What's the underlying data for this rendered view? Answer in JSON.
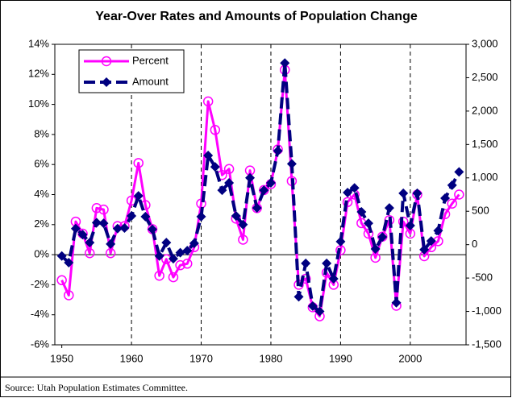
{
  "chart_data": {
    "type": "line",
    "title": "Year-Over Rates and Amounts of Population Change",
    "source": "Source: Utah Population Estimates Committee.",
    "x": [
      1950,
      1951,
      1952,
      1953,
      1954,
      1955,
      1956,
      1957,
      1958,
      1959,
      1960,
      1961,
      1962,
      1963,
      1964,
      1965,
      1966,
      1967,
      1968,
      1969,
      1970,
      1971,
      1972,
      1973,
      1974,
      1975,
      1976,
      1977,
      1978,
      1979,
      1980,
      1981,
      1982,
      1983,
      1984,
      1985,
      1986,
      1987,
      1988,
      1989,
      1990,
      1991,
      1992,
      1993,
      1994,
      1995,
      1996,
      1997,
      1998,
      1999,
      2000,
      2001,
      2002,
      2003,
      2004,
      2005,
      2006,
      2007
    ],
    "xlim": [
      1949,
      2008
    ],
    "xticks": [
      1950,
      1960,
      1970,
      1980,
      1990,
      2000
    ],
    "ylim": [
      -6,
      14
    ],
    "yticks": [
      {
        "value": -6,
        "label": "-6%"
      },
      {
        "value": -4,
        "label": "-4%"
      },
      {
        "value": -2,
        "label": "-2%"
      },
      {
        "value": 0,
        "label": "0%"
      },
      {
        "value": 2,
        "label": "2%"
      },
      {
        "value": 4,
        "label": "4%"
      },
      {
        "value": 6,
        "label": "6%"
      },
      {
        "value": 8,
        "label": "8%"
      },
      {
        "value": 10,
        "label": "10%"
      },
      {
        "value": 12,
        "label": "12%"
      },
      {
        "value": 14,
        "label": "14%"
      }
    ],
    "y2lim": [
      -1500,
      3000
    ],
    "y2ticks": [
      {
        "value": -1500,
        "label": "-1,500"
      },
      {
        "value": -1000,
        "label": "-1,000"
      },
      -500,
      0,
      500,
      {
        "value": 1000,
        "label": "1,000"
      },
      {
        "value": 1500,
        "label": "1,500"
      },
      {
        "value": 2000,
        "label": "2,000"
      },
      {
        "value": 2500,
        "label": "2,500"
      },
      {
        "value": 3000,
        "label": "3,000"
      }
    ],
    "legend": "upper left",
    "series": [
      {
        "name": "Percent",
        "color": "#ff00ff",
        "marker": "circle",
        "dashed": false,
        "values": [
          -1.7,
          -2.7,
          2.2,
          1.4,
          0.1,
          3.1,
          3.0,
          0.1,
          1.9,
          1.9,
          3.6,
          6.1,
          3.3,
          1.7,
          -1.4,
          -0.3,
          -1.5,
          -0.7,
          -0.6,
          0.5,
          3.4,
          10.2,
          8.3,
          5.3,
          5.7,
          2.4,
          1.0,
          5.6,
          3.1,
          4.3,
          4.7,
          7.0,
          12.3,
          4.9,
          -2.0,
          -1.6,
          -3.5,
          -4.1,
          -1.2,
          -2.0,
          0.3,
          3.5,
          4.0,
          2.1,
          1.4,
          -0.2,
          1.2,
          2.3,
          -3.4,
          2.2,
          1.4,
          4.0,
          -0.1,
          0.5,
          0.9,
          2.7,
          3.4,
          4.0
        ]
      },
      {
        "name": "Amount",
        "color": "#000080",
        "marker": "diamond",
        "dashed": true,
        "axis": "y2",
        "values": [
          -170,
          -270,
          240,
          150,
          30,
          330,
          320,
          10,
          240,
          250,
          430,
          730,
          420,
          230,
          -170,
          30,
          -210,
          -120,
          -90,
          20,
          420,
          1335,
          1165,
          815,
          925,
          430,
          300,
          1000,
          550,
          815,
          925,
          1405,
          2720,
          1210,
          -780,
          -280,
          -920,
          -1000,
          -280,
          -510,
          45,
          780,
          850,
          490,
          320,
          -65,
          115,
          550,
          -870,
          770,
          285,
          770,
          -75,
          55,
          210,
          695,
          890,
          1090
        ]
      }
    ]
  }
}
